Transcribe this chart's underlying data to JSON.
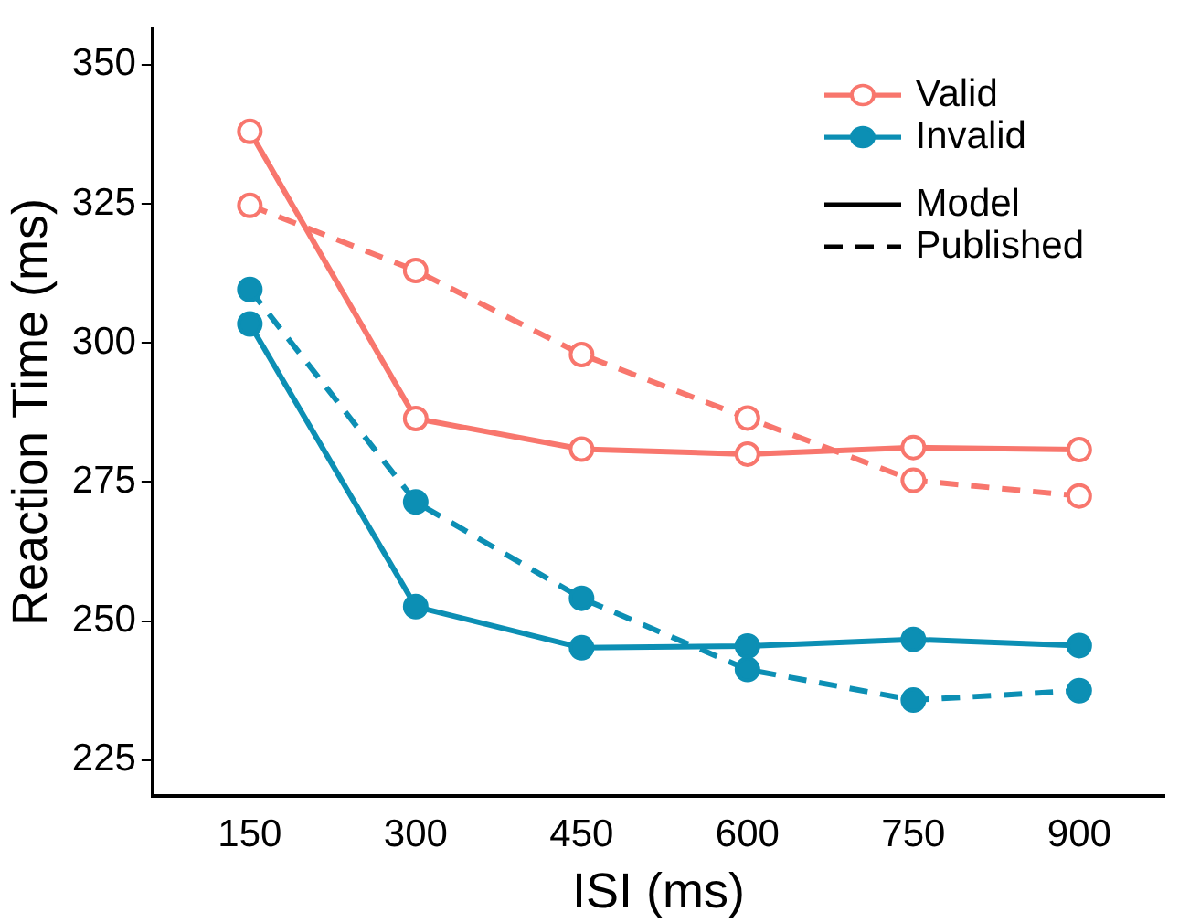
{
  "chart_data": {
    "type": "line",
    "xlabel": "ISI (ms)",
    "ylabel": "Reaction Time (ms)",
    "x": [
      150,
      300,
      450,
      600,
      750,
      900
    ],
    "series": [
      {
        "name": "Valid",
        "color": "#f8766d",
        "line_style": "solid",
        "values": [
          338,
          286.4,
          280.9,
          280,
          281.2,
          280.8
        ]
      },
      {
        "name": "Invalid",
        "color": "#0c8fb4",
        "line_style": "solid",
        "values": [
          303.4,
          252.6,
          245.2,
          245.5,
          246.7,
          245.6
        ]
      },
      {
        "color": "#f8766d",
        "line_style": "dashed",
        "values": [
          324.7,
          313,
          297.9,
          286.5,
          275.3,
          272.5
        ]
      },
      {
        "color": "#0c8fb4",
        "line_style": "dashed",
        "values": [
          309.6,
          271.4,
          254.1,
          241.3,
          235.8,
          237.5
        ]
      }
    ],
    "annotations": [
      "Model",
      "Published"
    ],
    "xlim": [
      62,
      977
    ],
    "xticks": [
      150,
      300,
      450,
      600,
      750,
      900
    ],
    "ylim": [
      218.6,
      356.5
    ],
    "yticks": [
      225,
      250,
      275,
      300,
      325,
      350
    ],
    "grid": false,
    "legend": "top right",
    "marker": "circle"
  }
}
